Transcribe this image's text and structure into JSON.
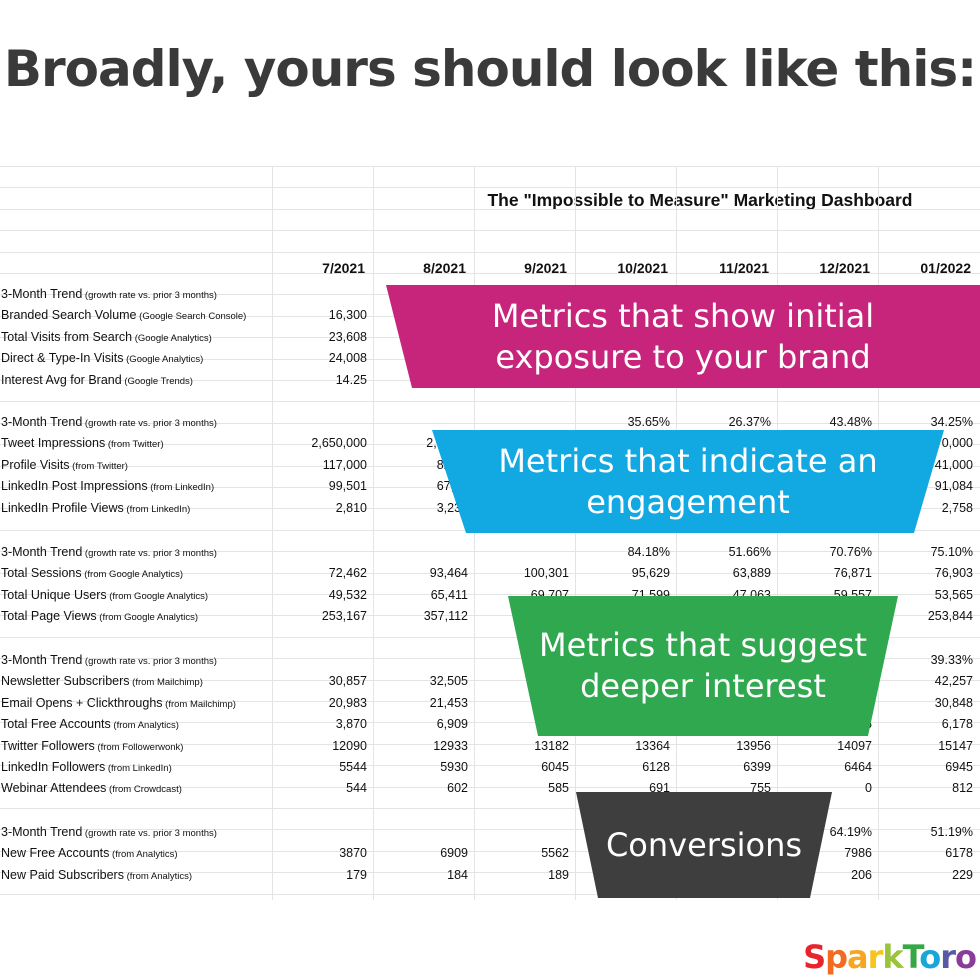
{
  "headline": "Broadly, yours should look like this:",
  "dashboard": {
    "title": "The \"Impossible to Measure\" Marketing Dashboard",
    "columns": [
      "7/2021",
      "8/2021",
      "9/2021",
      "10/2021",
      "11/2021",
      "12/2021",
      "01/2022"
    ],
    "sections": [
      {
        "rows": [
          {
            "label": "3-Month Trend",
            "source": "(growth rate vs. prior 3 months)",
            "values": [
              "",
              "",
              "",
              "",
              "",
              "",
              ""
            ]
          },
          {
            "label": "Branded Search Volume",
            "source": "(Google Search Console)",
            "values": [
              "16,300",
              "",
              "",
              "",
              "",
              "",
              ""
            ]
          },
          {
            "label": "Total Visits from Search",
            "source": "(Google Analytics)",
            "values": [
              "23,608",
              "",
              "",
              "",
              "",
              "",
              ""
            ]
          },
          {
            "label": "Direct & Type-In Visits",
            "source": "(Google Analytics)",
            "values": [
              "24,008",
              "",
              "",
              "",
              "",
              "",
              "31"
            ]
          },
          {
            "label": "Interest Avg for Brand",
            "source": "(Google Trends)",
            "values": [
              "14.25",
              "",
              "",
              "",
              "",
              "",
              "00"
            ]
          }
        ]
      },
      {
        "rows": [
          {
            "label": "3-Month Trend",
            "source": "(growth rate vs. prior 3 months)",
            "values": [
              "",
              "",
              "",
              "35.65%",
              "26.37%",
              "43.48%",
              "34.25%"
            ]
          },
          {
            "label": "Tweet Impressions",
            "source": "(from Twitter)",
            "values": [
              "2,650,000",
              "2,330,0",
              "",
              "",
              "",
              "",
              "0,000"
            ]
          },
          {
            "label": "Profile Visits",
            "source": "(from Twitter)",
            "values": [
              "117,000",
              "82,40",
              "",
              "",
              "",
              "",
              "41,000"
            ]
          },
          {
            "label": "LinkedIn Post Impressions",
            "source": "(from LinkedIn)",
            "values": [
              "99,501",
              "67,58",
              "",
              "",
              "",
              "",
              "91,084"
            ]
          },
          {
            "label": "LinkedIn Profile Views",
            "source": "(from LinkedIn)",
            "values": [
              "2,810",
              "3,239",
              "",
              "",
              "",
              "",
              "2,758"
            ]
          }
        ]
      },
      {
        "rows": [
          {
            "label": "3-Month Trend",
            "source": "(growth rate vs. prior 3 months)",
            "values": [
              "",
              "",
              "",
              "84.18%",
              "51.66%",
              "70.76%",
              "75.10%"
            ]
          },
          {
            "label": "Total Sessions",
            "source": "(from Google Analytics)",
            "values": [
              "72,462",
              "93,464",
              "100,301",
              "95,629",
              "63,889",
              "76,871",
              "76,903"
            ]
          },
          {
            "label": "Total Unique Users",
            "source": "(from Google Analytics)",
            "values": [
              "49,532",
              "65,411",
              "69,707",
              "71,599",
              "47,063",
              "59,557",
              "53,565"
            ]
          },
          {
            "label": "Total Page Views",
            "source": "(from Google Analytics)",
            "values": [
              "253,167",
              "357,112",
              "",
              "",
              "",
              "",
              "253,844"
            ]
          }
        ]
      },
      {
        "rows": [
          {
            "label": "3-Month Trend",
            "source": "(growth rate vs. prior 3 months)",
            "values": [
              "",
              "",
              "",
              "",
              "",
              "",
              "39.33%"
            ]
          },
          {
            "label": "Newsletter Subscribers",
            "source": "(from Mailchimp)",
            "values": [
              "30,857",
              "32,505",
              "",
              "",
              "",
              "",
              "42,257"
            ]
          },
          {
            "label": "Email Opens + Clickthroughs",
            "source": "(from Mailchimp)",
            "values": [
              "20,983",
              "21,453",
              "2",
              "",
              "",
              "",
              "30,848"
            ]
          },
          {
            "label": "Total Free Accounts",
            "source": "(from Analytics)",
            "values": [
              "3,870",
              "6,909",
              "",
              "",
              "",
              "6",
              "6,178"
            ]
          },
          {
            "label": "Twitter Followers",
            "source": "(from Followerwonk)",
            "values": [
              "12090",
              "12933",
              "13182",
              "13364",
              "13956",
              "14097",
              "15147"
            ]
          },
          {
            "label": "LinkedIn Followers",
            "source": "(from LinkedIn)",
            "values": [
              "5544",
              "5930",
              "6045",
              "6128",
              "6399",
              "6464",
              "6945"
            ]
          },
          {
            "label": "Webinar Attendees",
            "source": "(from Crowdcast)",
            "values": [
              "544",
              "602",
              "585",
              "691",
              "755",
              "0",
              "812"
            ]
          }
        ]
      },
      {
        "rows": [
          {
            "label": "3-Month Trend",
            "source": "(growth rate vs. prior 3 months)",
            "values": [
              "",
              "",
              "",
              "",
              "",
              "64.19%",
              "51.19%"
            ]
          },
          {
            "label": "New Free Accounts",
            "source": "(from Analytics)",
            "values": [
              "3870",
              "6909",
              "5562",
              "",
              "",
              "7986",
              "6178"
            ]
          },
          {
            "label": "New Paid Subscribers",
            "source": "(from Analytics)",
            "values": [
              "179",
              "184",
              "189",
              "",
              "",
              "206",
              "229"
            ]
          }
        ]
      }
    ]
  },
  "overlays": [
    {
      "text": "Metrics that show initial\nexposure to your brand",
      "color": "#c7247c"
    },
    {
      "text": "Metrics that indicate an\nengagement",
      "color": "#12a8e2"
    },
    {
      "text": "Metrics that suggest\ndeeper interest",
      "color": "#2fa84f"
    },
    {
      "text": "Conversions",
      "color": "#3e3e3e"
    }
  ],
  "logo": {
    "letters": [
      "S",
      "p",
      "a",
      "r",
      "k",
      "T",
      "o",
      "r",
      "o"
    ],
    "colors": [
      "#e8242c",
      "#f26b21",
      "#f6a623",
      "#f6c41c",
      "#9ac43c",
      "#35a846",
      "#19a7d8",
      "#5a59a7",
      "#8a3c9a"
    ]
  }
}
